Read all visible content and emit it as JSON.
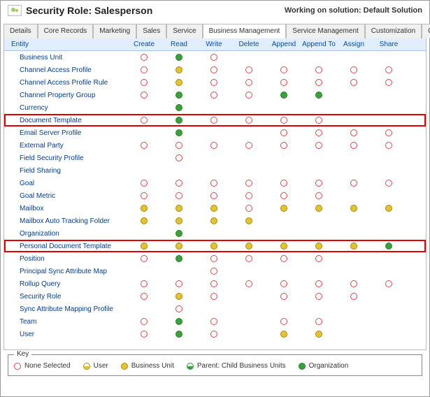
{
  "header": {
    "title": "Security Role: Salesperson",
    "solution_label": "Working on solution: Default Solution"
  },
  "tabs": [
    {
      "id": "details",
      "label": "Details"
    },
    {
      "id": "core",
      "label": "Core Records"
    },
    {
      "id": "marketing",
      "label": "Marketing"
    },
    {
      "id": "sales",
      "label": "Sales"
    },
    {
      "id": "service",
      "label": "Service"
    },
    {
      "id": "bm",
      "label": "Business Management",
      "active": true
    },
    {
      "id": "sm",
      "label": "Service Management"
    },
    {
      "id": "cust",
      "label": "Customization"
    },
    {
      "id": "ce",
      "label": "Custom Entities"
    }
  ],
  "grid": {
    "columns": [
      "Entity",
      "Create",
      "Read",
      "Write",
      "Delete",
      "Append",
      "Append To",
      "Assign",
      "Share"
    ],
    "rows": [
      {
        "entity": "Business Unit",
        "perms": [
          "none",
          "org",
          "none",
          "",
          "",
          "",
          "",
          ""
        ]
      },
      {
        "entity": "Channel Access Profile",
        "perms": [
          "none",
          "bu",
          "none",
          "none",
          "none",
          "none",
          "none",
          "none"
        ]
      },
      {
        "entity": "Channel Access Profile Rule",
        "perms": [
          "none",
          "bu",
          "none",
          "none",
          "none",
          "none",
          "none",
          "none"
        ]
      },
      {
        "entity": "Channel Property Group",
        "perms": [
          "none",
          "org",
          "none",
          "none",
          "org",
          "org",
          "",
          ""
        ]
      },
      {
        "entity": "Currency",
        "perms": [
          "",
          "org",
          "",
          "",
          "",
          "",
          "",
          ""
        ]
      },
      {
        "entity": "Document Template",
        "perms": [
          "none",
          "org",
          "none",
          "none",
          "none",
          "none",
          "",
          ""
        ],
        "highlight": true
      },
      {
        "entity": "Email Server Profile",
        "perms": [
          "",
          "org",
          "",
          "",
          "none",
          "none",
          "none",
          "none"
        ]
      },
      {
        "entity": "External Party",
        "perms": [
          "none",
          "none",
          "none",
          "none",
          "none",
          "none",
          "none",
          "none"
        ]
      },
      {
        "entity": "Field Security Profile",
        "perms": [
          "",
          "none",
          "",
          "",
          "",
          "",
          "",
          ""
        ]
      },
      {
        "entity": "Field Sharing",
        "perms": [
          "",
          "",
          "",
          "",
          "",
          "",
          "",
          ""
        ]
      },
      {
        "entity": "Goal",
        "perms": [
          "none",
          "none",
          "none",
          "none",
          "none",
          "none",
          "none",
          "none"
        ]
      },
      {
        "entity": "Goal Metric",
        "perms": [
          "none",
          "none",
          "none",
          "none",
          "none",
          "none",
          "",
          ""
        ]
      },
      {
        "entity": "Mailbox",
        "perms": [
          "bu",
          "bu",
          "bu",
          "none",
          "bu",
          "bu",
          "bu",
          "bu"
        ]
      },
      {
        "entity": "Mailbox Auto Tracking Folder",
        "perms": [
          "bu",
          "bu",
          "bu",
          "bu",
          "",
          "",
          "",
          ""
        ]
      },
      {
        "entity": "Organization",
        "perms": [
          "",
          "org",
          "",
          "",
          "",
          "",
          "",
          ""
        ]
      },
      {
        "entity": "Personal Document Template",
        "perms": [
          "bu",
          "bu",
          "bu",
          "bu",
          "bu",
          "bu",
          "bu",
          "org"
        ],
        "highlight": true
      },
      {
        "entity": "Position",
        "perms": [
          "none",
          "org",
          "none",
          "none",
          "none",
          "none",
          "",
          ""
        ]
      },
      {
        "entity": "Principal Sync Attribute Map",
        "perms": [
          "",
          "",
          "none",
          "",
          "",
          "",
          "",
          ""
        ]
      },
      {
        "entity": "Rollup Query",
        "perms": [
          "none",
          "none",
          "none",
          "none",
          "none",
          "none",
          "none",
          "none"
        ]
      },
      {
        "entity": "Security Role",
        "perms": [
          "none",
          "bu",
          "none",
          "",
          "none",
          "none",
          "none",
          ""
        ]
      },
      {
        "entity": "Sync Attribute Mapping Profile",
        "perms": [
          "",
          "none",
          "",
          "",
          "",
          "",
          "",
          ""
        ]
      },
      {
        "entity": "Team",
        "perms": [
          "none",
          "org",
          "none",
          "",
          "none",
          "none",
          "",
          ""
        ]
      },
      {
        "entity": "User",
        "perms": [
          "none",
          "org",
          "none",
          "",
          "bu",
          "bu",
          "",
          ""
        ]
      }
    ]
  },
  "key": {
    "title": "Key",
    "items": [
      {
        "level": "none",
        "label": "None Selected"
      },
      {
        "level": "user",
        "label": "User"
      },
      {
        "level": "bu",
        "label": "Business Unit"
      },
      {
        "level": "pcbu",
        "label": "Parent: Child Business Units"
      },
      {
        "level": "org",
        "label": "Organization"
      }
    ]
  },
  "colors": {
    "header_bg": "#e1eeff",
    "link": "#054a9b",
    "highlight_border": "#e00000",
    "none_border": "#d44a4a",
    "user_fill": "#e3c23a",
    "bu_fill": "#e3c23a",
    "org_fill": "#3aa03a"
  }
}
